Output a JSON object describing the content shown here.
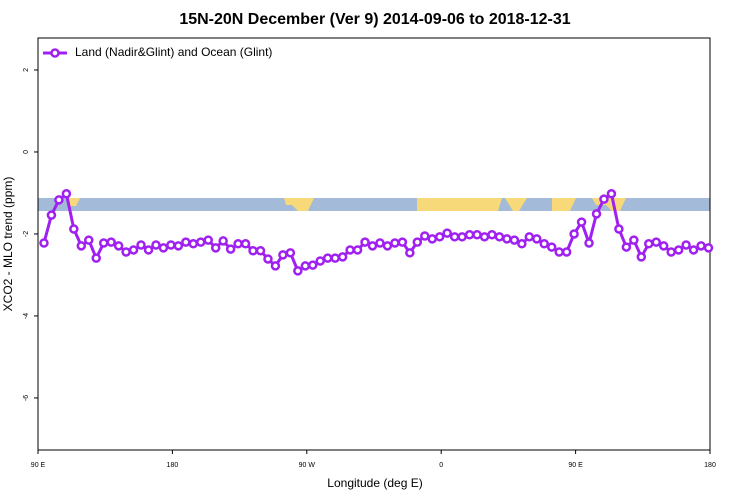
{
  "chart_data": {
    "type": "line",
    "title": "15N-20N December (Ver 9)   2014-09-06 to 2018-12-31",
    "x_label": "Longitude (deg E)",
    "y_label": "XCO2 - MLO trend (ppm)",
    "xlim": [
      90,
      540
    ],
    "xticks": [
      {
        "value": 90,
        "label": "90 E"
      },
      180,
      {
        "value": 270,
        "label": "90 W"
      },
      {
        "value": 360,
        "label": "0"
      },
      {
        "value": 450,
        "label": "90 E"
      },
      {
        "value": 540,
        "label": "180"
      }
    ],
    "ylim": [
      -7.27,
      2.78
    ],
    "yticks": [
      2,
      0,
      -2,
      -4,
      -6
    ],
    "legend": "top-left",
    "x": [
      94,
      99,
      104,
      109,
      114,
      119,
      124,
      129,
      134,
      139,
      144,
      149,
      154,
      159,
      164,
      169,
      174,
      179,
      184,
      189,
      194,
      199,
      204,
      209,
      214,
      219,
      224,
      229,
      234,
      239,
      244,
      249,
      254,
      259,
      264,
      269,
      274,
      279,
      284,
      289,
      294,
      299,
      304,
      309,
      314,
      319,
      324,
      329,
      334,
      339,
      344,
      349,
      354,
      359,
      364,
      369,
      374,
      379,
      384,
      389,
      394,
      399,
      404,
      409,
      414,
      419,
      424,
      429,
      434,
      439,
      444,
      449,
      454,
      459,
      464,
      469,
      474,
      479,
      484,
      489,
      494,
      499,
      504,
      509,
      514,
      519,
      524,
      529,
      534,
      539
    ],
    "series": [
      {
        "name": "Land (Nadir&Glint) and Ocean (Glint)",
        "color": "#a020f0",
        "values": [
          -2.22,
          -1.54,
          -1.17,
          -1.02,
          -1.88,
          -2.29,
          -2.15,
          -2.59,
          -2.22,
          -2.2,
          -2.29,
          -2.44,
          -2.39,
          -2.27,
          -2.39,
          -2.27,
          -2.34,
          -2.27,
          -2.29,
          -2.2,
          -2.24,
          -2.2,
          -2.15,
          -2.34,
          -2.17,
          -2.37,
          -2.24,
          -2.24,
          -2.41,
          -2.41,
          -2.61,
          -2.78,
          -2.51,
          -2.46,
          -2.9,
          -2.78,
          -2.76,
          -2.66,
          -2.59,
          -2.59,
          -2.56,
          -2.39,
          -2.39,
          -2.2,
          -2.29,
          -2.22,
          -2.29,
          -2.22,
          -2.2,
          -2.46,
          -2.2,
          -2.05,
          -2.12,
          -2.07,
          -1.98,
          -2.07,
          -2.07,
          -2.02,
          -2.02,
          -2.07,
          -2.02,
          -2.07,
          -2.12,
          -2.15,
          -2.24,
          -2.07,
          -2.12,
          -2.24,
          -2.32,
          -2.44,
          -2.44,
          -2.0,
          -1.71,
          -2.22,
          -1.51,
          -1.15,
          -1.02,
          -1.88,
          -2.32,
          -2.15,
          -2.56,
          -2.24,
          -2.2,
          -2.29,
          -2.44,
          -2.39,
          -2.27,
          -2.39,
          -2.29,
          -2.34
        ]
      }
    ]
  }
}
